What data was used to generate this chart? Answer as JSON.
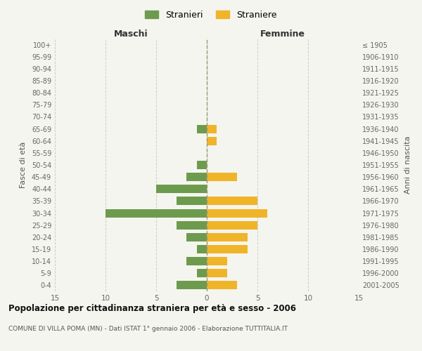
{
  "age_groups": [
    "100+",
    "95-99",
    "90-94",
    "85-89",
    "80-84",
    "75-79",
    "70-74",
    "65-69",
    "60-64",
    "55-59",
    "50-54",
    "45-49",
    "40-44",
    "35-39",
    "30-34",
    "25-29",
    "20-24",
    "15-19",
    "10-14",
    "5-9",
    "0-4"
  ],
  "birth_years": [
    "≤ 1905",
    "1906-1910",
    "1911-1915",
    "1916-1920",
    "1921-1925",
    "1926-1930",
    "1931-1935",
    "1936-1940",
    "1941-1945",
    "1946-1950",
    "1951-1955",
    "1956-1960",
    "1961-1965",
    "1966-1970",
    "1971-1975",
    "1976-1980",
    "1981-1985",
    "1986-1990",
    "1991-1995",
    "1996-2000",
    "2001-2005"
  ],
  "stranieri": [
    0,
    0,
    0,
    0,
    0,
    0,
    0,
    1,
    0,
    0,
    1,
    2,
    5,
    3,
    10,
    3,
    2,
    1,
    2,
    1,
    3
  ],
  "straniere": [
    0,
    0,
    0,
    0,
    0,
    0,
    0,
    1,
    1,
    0,
    0,
    3,
    0,
    5,
    6,
    5,
    4,
    4,
    2,
    2,
    3
  ],
  "stranieri_color": "#6d9b4e",
  "straniere_color": "#f0b429",
  "background_color": "#f5f5ef",
  "grid_color": "#cccccc",
  "title": "Popolazione per cittadinanza straniera per età e sesso - 2006",
  "subtitle": "COMUNE DI VILLA POMA (MN) - Dati ISTAT 1° gennaio 2006 - Elaborazione TUTTITALIA.IT",
  "xlabel_left": "Maschi",
  "xlabel_right": "Femmine",
  "ylabel_left": "Fasce di età",
  "ylabel_right": "Anni di nascita",
  "xlim": 15,
  "legend_stranieri": "Stranieri",
  "legend_straniere": "Straniere"
}
